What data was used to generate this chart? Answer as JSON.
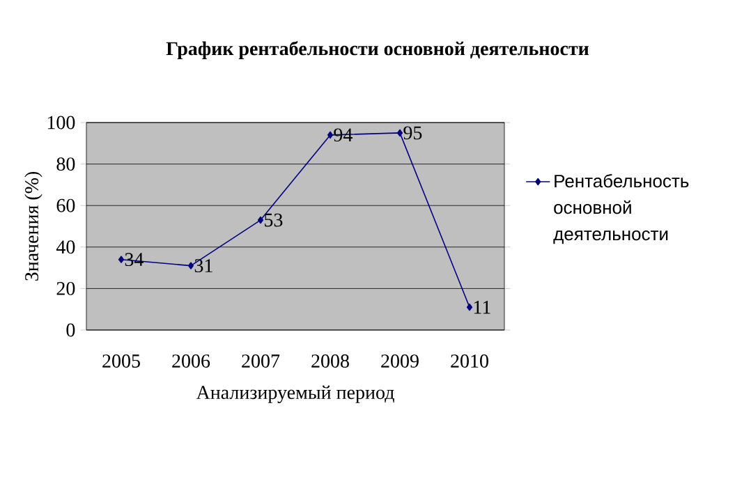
{
  "chart_data": {
    "type": "line",
    "title": "График рентабельности основной деятельности",
    "xlabel": "Анализируемый период",
    "ylabel": "Значения (%)",
    "categories": [
      "2005",
      "2006",
      "2007",
      "2008",
      "2009",
      "2010"
    ],
    "series": [
      {
        "name": "Рентабельность основной деятельности",
        "color": "#000080",
        "values": [
          34,
          31,
          53,
          94,
          95,
          11
        ]
      }
    ],
    "ylim": [
      0,
      100
    ],
    "yticks": [
      0,
      20,
      40,
      60,
      80,
      100
    ],
    "grid": "y",
    "legend": "right",
    "marker": "diamond",
    "line_style": "solid",
    "data_labels": true
  }
}
